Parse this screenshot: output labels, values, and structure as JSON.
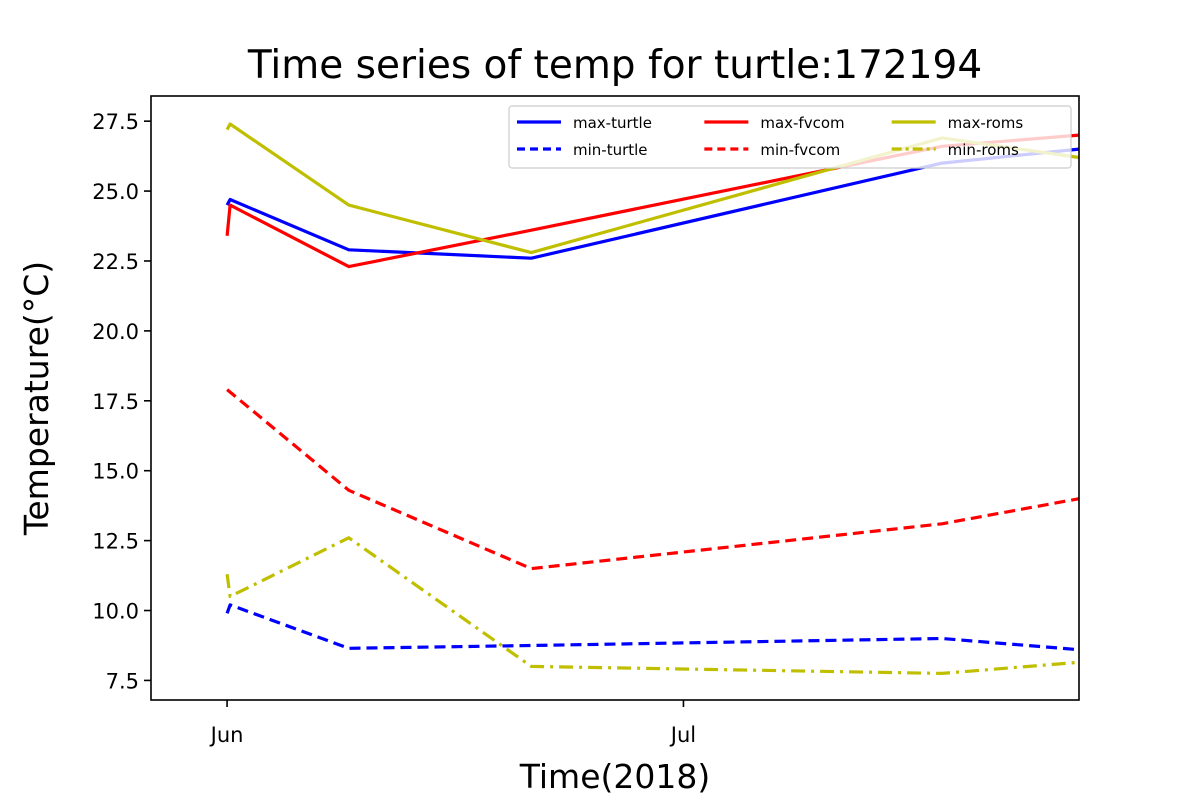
{
  "chart_data": {
    "type": "line",
    "title": "Time series of temp for turtle:172194",
    "xlabel": "Time(2018)",
    "ylabel": "Temperature(°C)",
    "xlim": [
      "2018-05-27",
      "2018-07-27"
    ],
    "ylim": [
      6.8,
      28.4
    ],
    "x_ticks": [
      {
        "date": "2018-06-01",
        "label": "Jun"
      },
      {
        "date": "2018-07-01",
        "label": "Jul"
      }
    ],
    "y_ticks": [
      7.5,
      10.0,
      12.5,
      15.0,
      17.5,
      20.0,
      22.5,
      25.0,
      27.5
    ],
    "y_tick_labels": [
      "7.5",
      "10.0",
      "12.5",
      "15.0",
      "17.5",
      "20.0",
      "22.5",
      "25.0",
      "27.5"
    ],
    "grid": false,
    "legend": {
      "placement": "upper-right",
      "columns": 3
    },
    "series": [
      {
        "name": "max-turtle",
        "color": "#0000ff",
        "style": "solid",
        "points": [
          [
            "2018-06-01",
            24.5
          ],
          [
            "2018-06-01",
            24.7
          ],
          [
            "2018-06-09",
            22.9
          ],
          [
            "2018-06-21",
            22.6
          ],
          [
            "2018-07-18",
            26.0
          ],
          [
            "2018-07-27",
            26.5
          ]
        ]
      },
      {
        "name": "min-turtle",
        "color": "#0000ff",
        "style": "dashed",
        "points": [
          [
            "2018-06-01",
            9.9
          ],
          [
            "2018-06-01",
            10.2
          ],
          [
            "2018-06-09",
            8.65
          ],
          [
            "2018-06-21",
            8.75
          ],
          [
            "2018-07-18",
            9.0
          ],
          [
            "2018-07-27",
            8.6
          ]
        ]
      },
      {
        "name": "max-fvcom",
        "color": "#ff0000",
        "style": "solid",
        "points": [
          [
            "2018-06-01",
            23.4
          ],
          [
            "2018-06-01",
            24.5
          ],
          [
            "2018-06-09",
            22.3
          ],
          [
            "2018-06-21",
            23.6
          ],
          [
            "2018-07-18",
            26.6
          ],
          [
            "2018-07-27",
            27.0
          ]
        ]
      },
      {
        "name": "min-fvcom",
        "color": "#ff0000",
        "style": "dashed",
        "points": [
          [
            "2018-06-01",
            17.9
          ],
          [
            "2018-06-09",
            14.3
          ],
          [
            "2018-06-21",
            11.5
          ],
          [
            "2018-07-18",
            13.1
          ],
          [
            "2018-07-27",
            14.0
          ]
        ]
      },
      {
        "name": "max-roms",
        "color": "#bfbf00",
        "style": "solid",
        "points": [
          [
            "2018-06-01",
            27.2
          ],
          [
            "2018-06-01",
            27.4
          ],
          [
            "2018-06-09",
            24.5
          ],
          [
            "2018-06-21",
            22.8
          ],
          [
            "2018-07-18",
            26.9
          ],
          [
            "2018-07-27",
            26.2
          ]
        ]
      },
      {
        "name": "min-roms",
        "color": "#bfbf00",
        "style": "dashdot",
        "points": [
          [
            "2018-06-01",
            11.3
          ],
          [
            "2018-06-01",
            10.5
          ],
          [
            "2018-06-09",
            12.6
          ],
          [
            "2018-06-21",
            8.0
          ],
          [
            "2018-07-18",
            7.75
          ],
          [
            "2018-07-27",
            8.15
          ]
        ]
      }
    ]
  }
}
